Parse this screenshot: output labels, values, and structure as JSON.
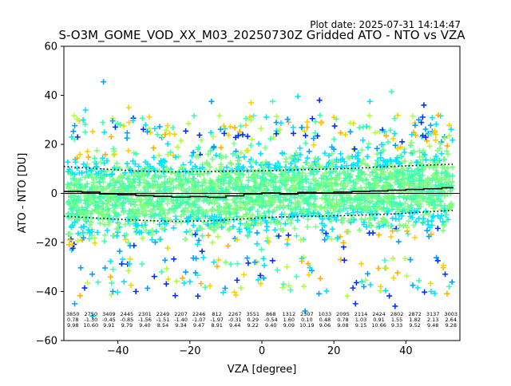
{
  "plot_date": "Plot date: 2025-07-31 14:14:47",
  "chart_data": {
    "type": "scatter",
    "title": "S-O3M_GOME_VOD_XX_M03_20250730Z Gridded ATO - NTO vs VZA",
    "xlabel": "VZA [degree]",
    "ylabel": "ATO - NTO [DU]",
    "xlim": [
      -55,
      55
    ],
    "ylim": [
      -60,
      60
    ],
    "x_ticks": [
      -40,
      -20,
      0,
      20,
      40
    ],
    "x_tick_labels": [
      "−40",
      "−20",
      "0",
      "20",
      "40"
    ],
    "y_ticks": [
      -60,
      -40,
      -20,
      0,
      20,
      40,
      60
    ],
    "y_tick_labels": [
      "−60",
      "−40",
      "−20",
      "0",
      "20",
      "40",
      "60"
    ],
    "grid": false,
    "zero_line": 0,
    "colors": {
      "scatter_palette": [
        "#00e5ff",
        "#40ffb0",
        "#7fff7f",
        "#b0ff40",
        "#ffd000",
        "#ffb000",
        "#00a0ff",
        "#0030ff"
      ],
      "median_line": "#000000",
      "spread_lines": "#000000"
    },
    "bins": [
      {
        "x": -52.5,
        "count": "3850",
        "mean": "0.78",
        "std": "9.98"
      },
      {
        "x": -47.5,
        "count": "2750",
        "mean": "-1.30",
        "std": "10.60"
      },
      {
        "x": -42.5,
        "count": "3409",
        "mean": "-0.45",
        "std": "9.91"
      },
      {
        "x": -37.5,
        "count": "2445",
        "mean": "-0.85",
        "std": "9.79"
      },
      {
        "x": -32.5,
        "count": "2301",
        "mean": "-1.56",
        "std": "9.40"
      },
      {
        "x": -27.5,
        "count": "2249",
        "mean": "-1.51",
        "std": "8.54"
      },
      {
        "x": -22.5,
        "count": "2207",
        "mean": "-1.40",
        "std": "9.34"
      },
      {
        "x": -17.5,
        "count": "2246",
        "mean": "-1.07",
        "std": "9.47"
      },
      {
        "x": -12.5,
        "count": "812",
        "mean": "-1.97",
        "std": "8.91"
      },
      {
        "x": -7.5,
        "count": "2267",
        "mean": "-0.31",
        "std": "9.44"
      },
      {
        "x": -2.5,
        "count": "3551",
        "mean": "0.29",
        "std": "9.22"
      },
      {
        "x": 2.5,
        "count": "868",
        "mean": "-0.54",
        "std": "9.40"
      },
      {
        "x": 7.5,
        "count": "1312",
        "mean": "1.60",
        "std": "9.09"
      },
      {
        "x": 12.5,
        "count": "2307",
        "mean": "0.10",
        "std": "10.19"
      },
      {
        "x": 17.5,
        "count": "1033",
        "mean": "0.48",
        "std": "9.06"
      },
      {
        "x": 22.5,
        "count": "2095",
        "mean": "0.78",
        "std": "9.08"
      },
      {
        "x": 27.5,
        "count": "2114",
        "mean": "1.03",
        "std": "9.15"
      },
      {
        "x": 32.5,
        "count": "2424",
        "mean": "0.91",
        "std": "10.66"
      },
      {
        "x": 37.5,
        "count": "2802",
        "mean": "1.55",
        "std": "9.33"
      },
      {
        "x": 42.5,
        "count": "2872",
        "mean": "1.82",
        "std": "9.52"
      },
      {
        "x": 47.5,
        "count": "3137",
        "mean": "2.13",
        "std": "9.48"
      },
      {
        "x": 52.5,
        "count": "3003",
        "mean": "2.64",
        "std": "9.28"
      }
    ],
    "median_line": {
      "x": [
        -55,
        -50,
        -45,
        -40,
        -35,
        -30,
        -25,
        -20,
        -15,
        -10,
        -5,
        0,
        5,
        10,
        15,
        20,
        25,
        30,
        35,
        40,
        45,
        50,
        53
      ],
      "y": [
        0.8,
        0.5,
        -0.2,
        -0.5,
        -0.9,
        -1.2,
        -1.5,
        -1.3,
        -1.6,
        -1.0,
        -0.2,
        0.2,
        -0.3,
        0.4,
        0.2,
        0.5,
        0.8,
        1.0,
        1.3,
        1.6,
        1.9,
        2.3,
        2.6
      ]
    },
    "spread_upper": {
      "x": [
        -55,
        -45,
        -35,
        -25,
        -15,
        -5,
        5,
        15,
        25,
        35,
        45,
        53
      ],
      "y": [
        11,
        10,
        9.2,
        8.8,
        8.9,
        9.1,
        9.4,
        9.8,
        10.2,
        10.9,
        11.5,
        11.9
      ]
    },
    "spread_lower": {
      "x": [
        -55,
        -45,
        -35,
        -25,
        -15,
        -5,
        5,
        15,
        25,
        35,
        45,
        53
      ],
      "y": [
        -9.3,
        -10.1,
        -10.9,
        -11.4,
        -11.2,
        -10.4,
        -9.6,
        -9.3,
        -9.0,
        -8.5,
        -7.6,
        -6.9
      ]
    },
    "scatter": {
      "x_range": [
        -54,
        53
      ],
      "core_spread": 10,
      "outliers": [
        {
          "x": -44,
          "y": 45.5
        },
        {
          "x": 16,
          "y": 38
        },
        {
          "x": -3,
          "y": 37
        },
        {
          "x": 10,
          "y": 39.5
        },
        {
          "x": 36,
          "y": 41.5
        },
        {
          "x": -52,
          "y": -45
        },
        {
          "x": -35,
          "y": -40
        },
        {
          "x": -26,
          "y": -35
        },
        {
          "x": -20,
          "y": -36
        },
        {
          "x": 6,
          "y": -37
        },
        {
          "x": 12,
          "y": -48
        },
        {
          "x": 26,
          "y": -45
        },
        {
          "x": 33,
          "y": -38
        },
        {
          "x": 47,
          "y": -40
        },
        {
          "x": 52,
          "y": -38
        },
        {
          "x": -47,
          "y": -50
        },
        {
          "x": 37,
          "y": -46
        },
        {
          "x": 20,
          "y": 31
        },
        {
          "x": -49,
          "y": 34
        },
        {
          "x": 3,
          "y": 37.5
        },
        {
          "x": -14,
          "y": 37.5
        },
        {
          "x": 45,
          "y": 36
        },
        {
          "x": -37,
          "y": 35
        },
        {
          "x": 30,
          "y": 37.5
        }
      ]
    }
  }
}
